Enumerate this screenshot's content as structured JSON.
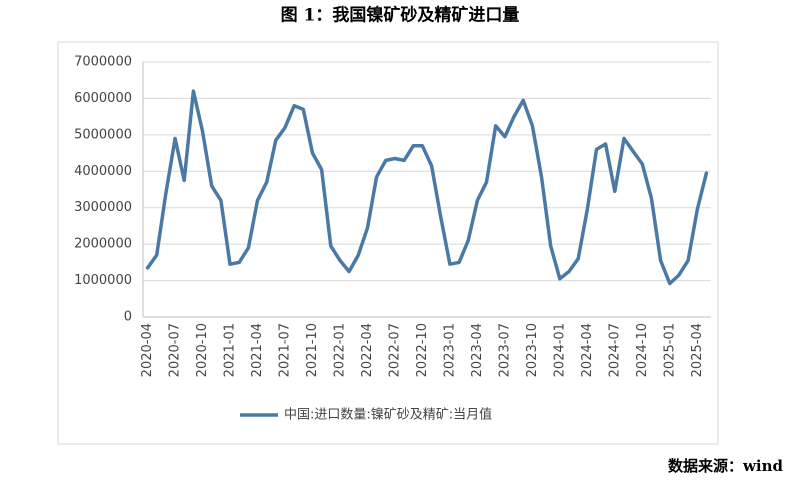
{
  "chart_data": {
    "type": "line",
    "title": "图 1：我国镍矿砂及精矿进口量",
    "source": "数据来源：wind",
    "categories": [
      "2020-04",
      null,
      null,
      "2020-07",
      null,
      null,
      "2020-10",
      null,
      null,
      "2021-01",
      null,
      null,
      "2021-04",
      null,
      null,
      "2021-07",
      null,
      null,
      "2021-10",
      null,
      null,
      "2022-01",
      null,
      null,
      "2022-04",
      null,
      null,
      "2022-07",
      null,
      null,
      "2022-10",
      null,
      null,
      "2023-01",
      null,
      null,
      "2023-04",
      null,
      null,
      "2023-07",
      null,
      null,
      "2023-10",
      null,
      null,
      "2024-01",
      null,
      null,
      "2024-04",
      null,
      null,
      "2024-07",
      null,
      null,
      "2024-10",
      null,
      null,
      "2025-01",
      null,
      null,
      "2025-04",
      null
    ],
    "series": [
      {
        "name": "中国:进口数量:镍矿砂及精矿:当月值",
        "color": "#4a79a5",
        "values": [
          1350000,
          1700000,
          3400000,
          4900000,
          3750000,
          6200000,
          5100000,
          3600000,
          3200000,
          1450000,
          1500000,
          1900000,
          3200000,
          3700000,
          4850000,
          5200000,
          5800000,
          5700000,
          4500000,
          4050000,
          1950000,
          1550000,
          1250000,
          1700000,
          2450000,
          3850000,
          4300000,
          4350000,
          4300000,
          4700000,
          4700000,
          4150000,
          2750000,
          1450000,
          1500000,
          2100000,
          3200000,
          3700000,
          5250000,
          4950000,
          5500000,
          5950000,
          5250000,
          3850000,
          1950000,
          1050000,
          1250000,
          1600000,
          2950000,
          4600000,
          4750000,
          3450000,
          4900000,
          4550000,
          4200000,
          3250000,
          1550000,
          920000,
          1150000,
          1550000,
          2950000,
          3950000
        ]
      }
    ],
    "ylim": [
      0,
      7000000
    ],
    "yticks": [
      0,
      1000000,
      2000000,
      3000000,
      4000000,
      5000000,
      6000000,
      7000000
    ],
    "grid": true
  }
}
